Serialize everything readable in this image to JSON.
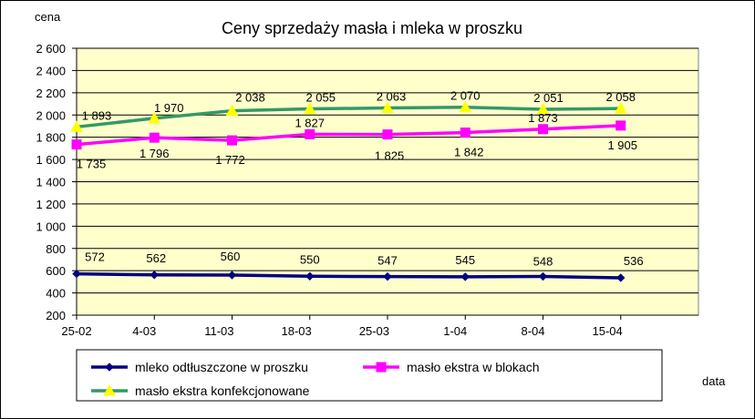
{
  "chart_data": {
    "type": "line",
    "title": "Ceny sprzedaży masła i mleka w proszku",
    "ylabel": "cena",
    "xlabel": "data",
    "categories": [
      "25-02",
      "4-03",
      "11-03",
      "18-03",
      "25-03",
      "1-04",
      "8-04",
      "15-04"
    ],
    "ylim": [
      200,
      2600
    ],
    "yticks": [
      200,
      400,
      600,
      800,
      1000,
      1200,
      1400,
      1600,
      1800,
      2000,
      2200,
      2400,
      2600
    ],
    "ytick_labels": [
      "200",
      "400",
      "600",
      "800",
      "1 000",
      "1 200",
      "1 400",
      "1 600",
      "1 800",
      "2 000",
      "2 200",
      "2 400",
      "2 600"
    ],
    "grid": "horizontal",
    "plot_background": "#FFFFCC",
    "legend_position": "bottom",
    "series": [
      {
        "name": "mleko odtłuszczone w proszku",
        "color": "#000080",
        "marker": "diamond",
        "values": [
          572,
          562,
          560,
          550,
          547,
          545,
          548,
          536
        ],
        "labels": [
          "572",
          "562",
          "560",
          "550",
          "547",
          "545",
          "548",
          "536"
        ]
      },
      {
        "name": "masło ekstra w blokach",
        "color": "#FF00FF",
        "marker": "square",
        "values": [
          1735,
          1796,
          1772,
          1827,
          1825,
          1842,
          1873,
          1905
        ],
        "labels": [
          "1 735",
          "1 796",
          "1 772",
          "1 827",
          "1 825",
          "1 842",
          "1 873",
          "1 905"
        ]
      },
      {
        "name": "masło ekstra konfekcjonowane",
        "color": "#339966",
        "marker": "triangle",
        "marker_color": "#FFFF00",
        "values": [
          1893,
          1970,
          2038,
          2055,
          2063,
          2070,
          2051,
          2058
        ],
        "labels": [
          "1 893",
          "1 970",
          "2 038",
          "2 055",
          "2 063",
          "2 070",
          "2 051",
          "2 058"
        ]
      }
    ]
  }
}
